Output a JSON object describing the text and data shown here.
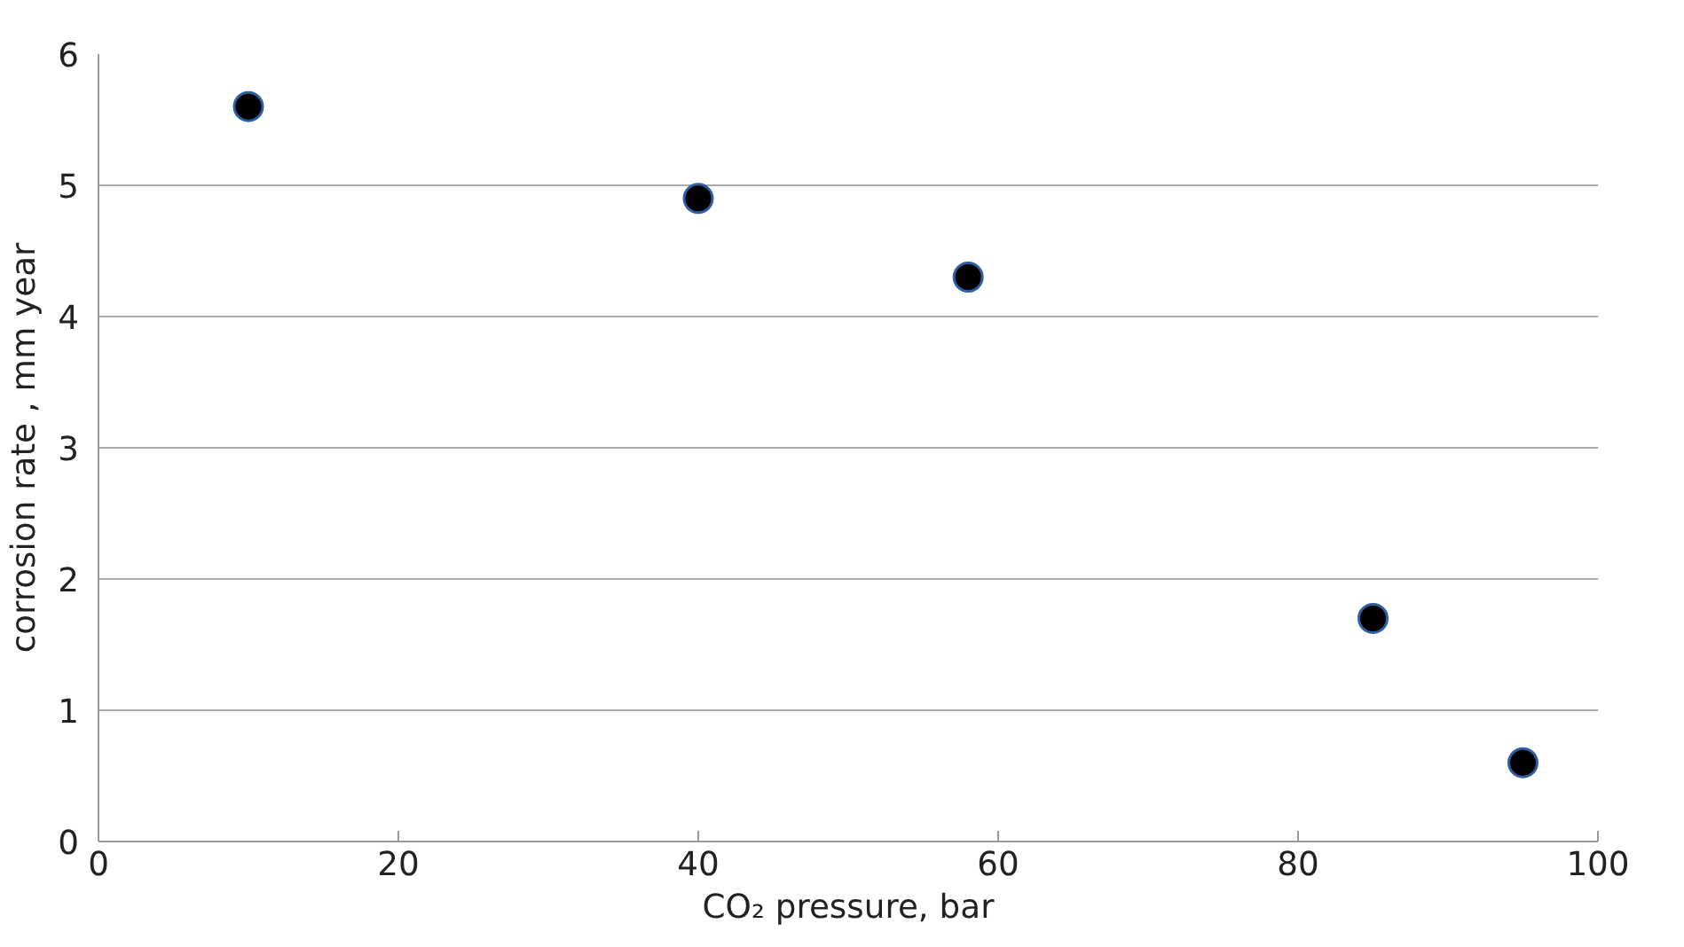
{
  "chart_data": {
    "type": "scatter",
    "xlabel": "CO₂ pressure, bar",
    "ylabel": "corrosion rate , mm year",
    "x": [
      10,
      40,
      58,
      85,
      95
    ],
    "series": [
      {
        "color": "#000000",
        "values": [
          5.6,
          4.9,
          4.3,
          1.7,
          0.6
        ]
      }
    ],
    "xlim": [
      0,
      100
    ],
    "xticks": [
      0,
      20,
      40,
      60,
      80,
      100
    ],
    "ylim": [
      0,
      6
    ],
    "yticks": [
      0,
      1,
      2,
      3,
      4,
      5,
      6
    ],
    "grid": "y",
    "marker": "circle"
  }
}
